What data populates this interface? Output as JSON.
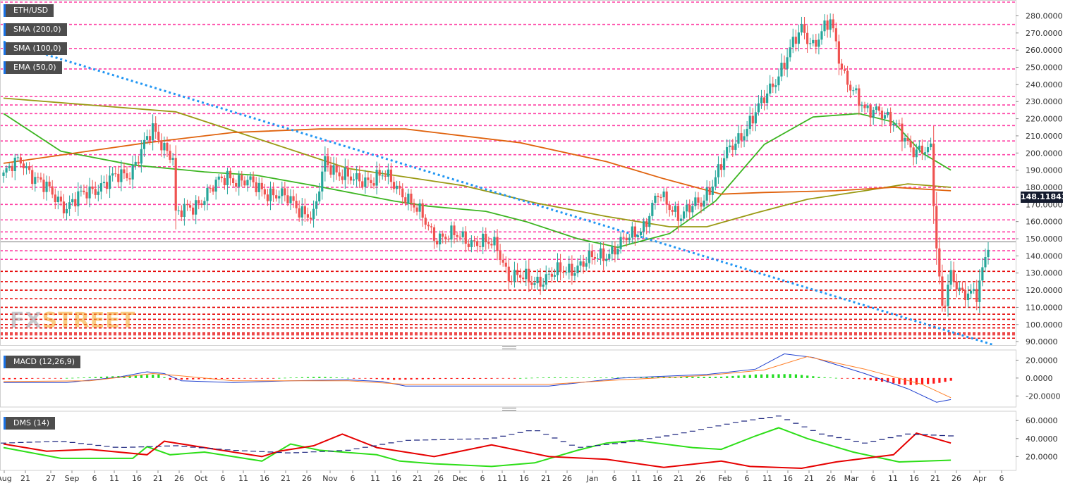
{
  "symbol": "ETH/USD",
  "legends": {
    "sma200": "SMA (200,0)",
    "sma100": "SMA (100,0)",
    "ema50": "EMA (50,0)",
    "macd": "MACD (12,26,9)",
    "dms": "DMS (14)"
  },
  "watermark": {
    "part1": "FX",
    "part2": "STREET"
  },
  "current_price": "148.11843",
  "colors": {
    "up": "#26a69a",
    "down": "#ef5350",
    "ema50": "#3cb521",
    "sma100": "#9a9a14",
    "sma200": "#e0620d",
    "trendline": "#2196f3",
    "res": "#ff3fa4",
    "sup": "#e60000",
    "macd_line": "#1e3fcf",
    "signal_line": "#ff7f27",
    "dms_plus": "#2dde18",
    "dms_minus": "#e60000",
    "adx": "#1a237e"
  },
  "chart_data": [
    {
      "type": "candlestick",
      "title": "ETH/USD",
      "ylim": [
        88,
        288
      ],
      "y_ticks": [
        "280.0000",
        "270.0000",
        "260.0000",
        "250.0000",
        "240.0000",
        "230.0000",
        "220.0000",
        "210.0000",
        "200.0000",
        "190.0000",
        "180.0000",
        "170.0000",
        "160.0000",
        "150.0000",
        "140.0000",
        "130.0000",
        "120.0000",
        "110.0000",
        "100.0000",
        "90.0000"
      ],
      "x_ticks": [
        "Aug",
        "21",
        "27",
        "Sep",
        "6",
        "11",
        "16",
        "21",
        "26",
        "Oct",
        "6",
        "11",
        "16",
        "21",
        "26",
        "Nov",
        "6",
        "11",
        "16",
        "21",
        "26",
        "Dec",
        "6",
        "11",
        "16",
        "21",
        "26",
        "Jan",
        "6",
        "11",
        "16",
        "21",
        "26",
        "Feb",
        "6",
        "11",
        "16",
        "21",
        "26",
        "Mar",
        "6",
        "11",
        "16",
        "21",
        "26",
        "Apr",
        "6"
      ],
      "resistance_levels": [
        288,
        275,
        261,
        249,
        233,
        228,
        223,
        216,
        207,
        199,
        192,
        180,
        170,
        161,
        154,
        150,
        143,
        138
      ],
      "support_levels": [
        131,
        125,
        120,
        115,
        110,
        106,
        103,
        100,
        98,
        95,
        94,
        92
      ],
      "ohlc_anchors": [
        [
          0,
          187
        ],
        [
          6,
          196
        ],
        [
          14,
          180
        ],
        [
          22,
          169
        ],
        [
          32,
          180
        ],
        [
          44,
          189
        ],
        [
          52,
          213
        ],
        [
          59,
          198
        ],
        [
          60,
          163
        ],
        [
          66,
          169
        ],
        [
          78,
          187
        ],
        [
          90,
          179
        ],
        [
          100,
          172
        ],
        [
          108,
          162
        ],
        [
          112,
          195
        ],
        [
          122,
          183
        ],
        [
          132,
          187
        ],
        [
          140,
          176
        ],
        [
          150,
          152
        ],
        [
          158,
          151
        ],
        [
          166,
          148
        ],
        [
          172,
          145
        ],
        [
          176,
          129
        ],
        [
          184,
          125
        ],
        [
          192,
          129
        ],
        [
          204,
          137
        ],
        [
          214,
          145
        ],
        [
          223,
          158
        ],
        [
          228,
          175
        ],
        [
          236,
          164
        ],
        [
          243,
          171
        ],
        [
          252,
          199
        ],
        [
          264,
          228
        ],
        [
          278,
          272
        ],
        [
          282,
          264
        ],
        [
          288,
          276
        ],
        [
          292,
          250
        ],
        [
          300,
          223
        ],
        [
          305,
          227
        ],
        [
          312,
          212
        ],
        [
          316,
          204
        ],
        [
          323,
          200
        ],
        [
          325,
          143
        ],
        [
          327,
          110
        ],
        [
          330,
          131
        ],
        [
          334,
          115
        ],
        [
          339,
          119
        ],
        [
          343,
          148
        ]
      ],
      "series": [
        {
          "name": "EMA (50,0)",
          "points": [
            [
              0,
              223
            ],
            [
              20,
              201
            ],
            [
              45,
              193
            ],
            [
              70,
              189
            ],
            [
              88,
              187
            ],
            [
              108,
              181
            ],
            [
              136,
              172
            ],
            [
              148,
              169
            ],
            [
              168,
              166
            ],
            [
              182,
              160
            ],
            [
              200,
              150
            ],
            [
              214,
              145
            ],
            [
              232,
              153
            ],
            [
              248,
              172
            ],
            [
              265,
              205
            ],
            [
              282,
              221
            ],
            [
              298,
              223
            ],
            [
              310,
              218
            ],
            [
              320,
              200
            ],
            [
              330,
              190
            ]
          ]
        },
        {
          "name": "SMA (100,0)",
          "points": [
            [
              0,
              232
            ],
            [
              60,
              224
            ],
            [
              120,
              191
            ],
            [
              160,
              181
            ],
            [
              185,
              171
            ],
            [
              210,
              163
            ],
            [
              232,
              157
            ],
            [
              245,
              157
            ],
            [
              262,
              165
            ],
            [
              280,
              173
            ],
            [
              300,
              178
            ],
            [
              315,
              182
            ],
            [
              330,
              180
            ]
          ]
        },
        {
          "name": "SMA (200,0)",
          "points": [
            [
              0,
              194
            ],
            [
              50,
              206
            ],
            [
              80,
              212
            ],
            [
              110,
              214
            ],
            [
              140,
              214
            ],
            [
              180,
              206
            ],
            [
              210,
              195
            ],
            [
              230,
              185
            ],
            [
              250,
              176
            ],
            [
              265,
              177
            ],
            [
              290,
              178
            ],
            [
              310,
              180
            ],
            [
              330,
              178
            ]
          ]
        },
        {
          "name": "trendline",
          "points": [
            [
              0,
              265
            ],
            [
              345,
              88
            ]
          ]
        }
      ]
    },
    {
      "type": "bar+line",
      "title": "MACD (12,26,9)",
      "ylim": [
        -30,
        29
      ],
      "y_ticks": [
        "20.0000",
        "0.0000",
        "-20.0000"
      ],
      "series": [
        {
          "name": "histogram",
          "points": [
            [
              0,
              -1.5
            ],
            [
              25,
              0.3
            ],
            [
              46,
              3
            ],
            [
              54,
              4
            ],
            [
              58,
              -2
            ],
            [
              72,
              -1
            ],
            [
              90,
              -0.5
            ],
            [
              110,
              1.5
            ],
            [
              128,
              -0.8
            ],
            [
              136,
              -2
            ],
            [
              150,
              -1
            ],
            [
              170,
              -0.8
            ],
            [
              190,
              0.8
            ],
            [
              210,
              0.5
            ],
            [
              230,
              1.5
            ],
            [
              250,
              1.5
            ],
            [
              262,
              4
            ],
            [
              275,
              4.5
            ],
            [
              285,
              1
            ],
            [
              300,
              -1.5
            ],
            [
              315,
              -8
            ],
            [
              325,
              -6
            ],
            [
              330,
              -3
            ]
          ]
        },
        {
          "name": "macd",
          "points": [
            [
              0,
              -5
            ],
            [
              22,
              -5
            ],
            [
              40,
              1
            ],
            [
              50,
              7
            ],
            [
              56,
              5
            ],
            [
              62,
              -3
            ],
            [
              80,
              -5
            ],
            [
              100,
              -3
            ],
            [
              120,
              -2
            ],
            [
              132,
              -4
            ],
            [
              140,
              -9
            ],
            [
              160,
              -9
            ],
            [
              190,
              -9
            ],
            [
              215,
              0
            ],
            [
              245,
              4
            ],
            [
              262,
              10
            ],
            [
              272,
              27
            ],
            [
              282,
              23
            ],
            [
              300,
              5
            ],
            [
              315,
              -12
            ],
            [
              325,
              -27
            ],
            [
              330,
              -24
            ]
          ]
        },
        {
          "name": "signal",
          "points": [
            [
              0,
              -4
            ],
            [
              30,
              -3
            ],
            [
              52,
              5
            ],
            [
              60,
              3
            ],
            [
              80,
              -3
            ],
            [
              120,
              -3
            ],
            [
              140,
              -7
            ],
            [
              190,
              -7
            ],
            [
              215,
              -2
            ],
            [
              245,
              3
            ],
            [
              265,
              9
            ],
            [
              280,
              24
            ],
            [
              300,
              10
            ],
            [
              320,
              -7
            ],
            [
              330,
              -22
            ]
          ]
        }
      ]
    },
    {
      "type": "line",
      "title": "DMS (14)",
      "ylim": [
        7,
        68
      ],
      "y_ticks": [
        "60.0000",
        "40.0000",
        "20.0000"
      ],
      "series": [
        {
          "name": "+DI",
          "points": [
            [
              0,
              30
            ],
            [
              20,
              18
            ],
            [
              45,
              18
            ],
            [
              50,
              31
            ],
            [
              58,
              22
            ],
            [
              70,
              25
            ],
            [
              90,
              15
            ],
            [
              100,
              34
            ],
            [
              110,
              27
            ],
            [
              130,
              22
            ],
            [
              138,
              15
            ],
            [
              150,
              12
            ],
            [
              170,
              9
            ],
            [
              185,
              13
            ],
            [
              200,
              27
            ],
            [
              210,
              35
            ],
            [
              220,
              38
            ],
            [
              240,
              30
            ],
            [
              250,
              28
            ],
            [
              262,
              43
            ],
            [
              270,
              52
            ],
            [
              280,
              40
            ],
            [
              296,
              25
            ],
            [
              312,
              14
            ],
            [
              330,
              16
            ]
          ]
        },
        {
          "name": "-DI",
          "points": [
            [
              0,
              34
            ],
            [
              15,
              26
            ],
            [
              30,
              28
            ],
            [
              50,
              22
            ],
            [
              56,
              37
            ],
            [
              70,
              30
            ],
            [
              90,
              20
            ],
            [
              96,
              26
            ],
            [
              108,
              32
            ],
            [
              118,
              45
            ],
            [
              130,
              30
            ],
            [
              150,
              20
            ],
            [
              170,
              33
            ],
            [
              190,
              20
            ],
            [
              210,
              17
            ],
            [
              230,
              8
            ],
            [
              250,
              15
            ],
            [
              260,
              9
            ],
            [
              278,
              7
            ],
            [
              290,
              14
            ],
            [
              310,
              22
            ],
            [
              318,
              46
            ],
            [
              330,
              35
            ]
          ]
        },
        {
          "name": "ADX",
          "points": [
            [
              0,
              35
            ],
            [
              20,
              37
            ],
            [
              40,
              30
            ],
            [
              60,
              32
            ],
            [
              80,
              27
            ],
            [
              100,
              24
            ],
            [
              120,
              27
            ],
            [
              140,
              38
            ],
            [
              170,
              40
            ],
            [
              185,
              50
            ],
            [
              200,
              30
            ],
            [
              215,
              35
            ],
            [
              235,
              45
            ],
            [
              255,
              58
            ],
            [
              270,
              65
            ],
            [
              285,
              45
            ],
            [
              300,
              35
            ],
            [
              315,
              45
            ],
            [
              330,
              43
            ]
          ]
        }
      ]
    }
  ]
}
